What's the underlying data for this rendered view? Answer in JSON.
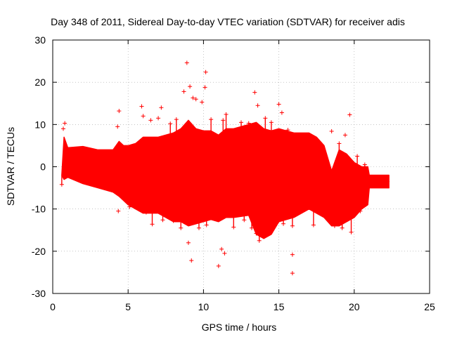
{
  "chart_data": {
    "type": "scatter",
    "title": "Day 348 of 2011, Sidereal Day-to-day VTEC variation (SDTVAR) for receiver adis",
    "xlabel": "GPS time / hours",
    "ylabel": "SDTVAR / TECUs",
    "xlim": [
      0,
      25
    ],
    "ylim": [
      -30,
      30
    ],
    "x_ticks": [
      0,
      5,
      10,
      15,
      20,
      25
    ],
    "y_ticks": [
      -30,
      -20,
      -10,
      0,
      10,
      20,
      30
    ],
    "x_tick_labels": [
      "0",
      "5",
      "10",
      "15",
      "20",
      "25"
    ],
    "y_tick_labels": [
      "-30",
      "-20",
      "-10",
      "0",
      "10",
      "20",
      "30"
    ],
    "grid": true,
    "marker": "+",
    "series_color": "#ff0000",
    "envelope": {
      "description": "dense band of points; upper and lower bounds in data units",
      "x": [
        0.6,
        0.75,
        1.0,
        2.0,
        3.0,
        4.0,
        4.4,
        4.7,
        5.0,
        5.5,
        6.0,
        7.0,
        8.0,
        8.5,
        9.0,
        9.5,
        10.0,
        10.5,
        11.0,
        11.5,
        12.0,
        13.0,
        13.5,
        14.0,
        14.5,
        15.0,
        16.0,
        17.0,
        17.5,
        18.0,
        18.5,
        19.0,
        19.5,
        20.0,
        20.5,
        20.9,
        21.0,
        22.0,
        22.3
      ],
      "upper": [
        -2,
        7,
        4.5,
        4.8,
        4,
        4,
        6,
        5,
        5,
        5.5,
        7,
        7,
        8,
        9,
        11,
        9,
        8.5,
        8.5,
        7.5,
        9,
        9,
        10,
        10.5,
        9,
        8.5,
        9,
        8,
        8,
        7,
        5,
        -1,
        4,
        3,
        1,
        0,
        0,
        -2,
        -2,
        -2
      ],
      "lower": [
        -2,
        -3,
        -2.5,
        -4,
        -5,
        -6,
        -7,
        -8,
        -9,
        -10,
        -11,
        -11,
        -13,
        -13,
        -14,
        -13.5,
        -13,
        -12.5,
        -13,
        -12,
        -12,
        -11.5,
        -16,
        -17,
        -16,
        -13,
        -12,
        -10,
        -11,
        -12,
        -14,
        -14,
        -13,
        -12,
        -10,
        -9,
        -5,
        -5,
        -5
      ]
    },
    "outliers": [
      {
        "x": 0.7,
        "y": 9
      },
      {
        "x": 0.8,
        "y": 10.3
      },
      {
        "x": 0.6,
        "y": -4.2
      },
      {
        "x": 4.4,
        "y": 13.2
      },
      {
        "x": 4.35,
        "y": -10.5
      },
      {
        "x": 4.3,
        "y": 9.5
      },
      {
        "x": 5.1,
        "y": -9.5
      },
      {
        "x": 5.9,
        "y": 14.3
      },
      {
        "x": 6.0,
        "y": 12
      },
      {
        "x": 6.2,
        "y": -10.8
      },
      {
        "x": 6.6,
        "y": -13.6
      },
      {
        "x": 6.5,
        "y": 11
      },
      {
        "x": 7.0,
        "y": 11.5
      },
      {
        "x": 7.2,
        "y": 14.0
      },
      {
        "x": 7.3,
        "y": -12.6
      },
      {
        "x": 7.8,
        "y": 10.2
      },
      {
        "x": 8.0,
        "y": -12.8
      },
      {
        "x": 8.2,
        "y": 11.2
      },
      {
        "x": 8.5,
        "y": -14.5
      },
      {
        "x": 8.7,
        "y": 17.8
      },
      {
        "x": 8.9,
        "y": 24.6
      },
      {
        "x": 9.0,
        "y": -18
      },
      {
        "x": 9.1,
        "y": 19.0
      },
      {
        "x": 9.2,
        "y": -22.2
      },
      {
        "x": 9.3,
        "y": 16.3
      },
      {
        "x": 9.5,
        "y": 16
      },
      {
        "x": 9.7,
        "y": -14.5
      },
      {
        "x": 9.9,
        "y": 15.3
      },
      {
        "x": 10.1,
        "y": 18.8
      },
      {
        "x": 10.15,
        "y": 22.4
      },
      {
        "x": 10.2,
        "y": -13.8
      },
      {
        "x": 10.5,
        "y": 11.2
      },
      {
        "x": 11.0,
        "y": -23.5
      },
      {
        "x": 11.2,
        "y": -19.5
      },
      {
        "x": 11.4,
        "y": -20.5
      },
      {
        "x": 11.3,
        "y": 11
      },
      {
        "x": 11.5,
        "y": 12.4
      },
      {
        "x": 12.0,
        "y": -14.3
      },
      {
        "x": 12.5,
        "y": 10.5
      },
      {
        "x": 12.7,
        "y": -12.6
      },
      {
        "x": 13.0,
        "y": 10.3
      },
      {
        "x": 13.2,
        "y": -14.5
      },
      {
        "x": 13.4,
        "y": 17.6
      },
      {
        "x": 13.6,
        "y": 14.5
      },
      {
        "x": 13.5,
        "y": -15.8
      },
      {
        "x": 13.7,
        "y": -17.5
      },
      {
        "x": 14.1,
        "y": 11.5
      },
      {
        "x": 14.3,
        "y": -15.5
      },
      {
        "x": 14.5,
        "y": 10.5
      },
      {
        "x": 15.0,
        "y": 14.8
      },
      {
        "x": 15.2,
        "y": 12.8
      },
      {
        "x": 15.3,
        "y": -13.5
      },
      {
        "x": 15.6,
        "y": 8.7
      },
      {
        "x": 15.9,
        "y": -14
      },
      {
        "x": 15.9,
        "y": -20.8
      },
      {
        "x": 15.9,
        "y": -25.2
      },
      {
        "x": 17.3,
        "y": -13.8
      },
      {
        "x": 18.5,
        "y": 8.4
      },
      {
        "x": 18.7,
        "y": -14
      },
      {
        "x": 19.0,
        "y": 5.5
      },
      {
        "x": 19.2,
        "y": -14.5
      },
      {
        "x": 19.4,
        "y": 7.5
      },
      {
        "x": 19.7,
        "y": 12.3
      },
      {
        "x": 19.8,
        "y": -15.5
      },
      {
        "x": 20.2,
        "y": 2.5
      },
      {
        "x": 20.4,
        "y": -10.5
      },
      {
        "x": 20.7,
        "y": 0.5
      },
      {
        "x": 22.2,
        "y": -3.5
      }
    ]
  }
}
